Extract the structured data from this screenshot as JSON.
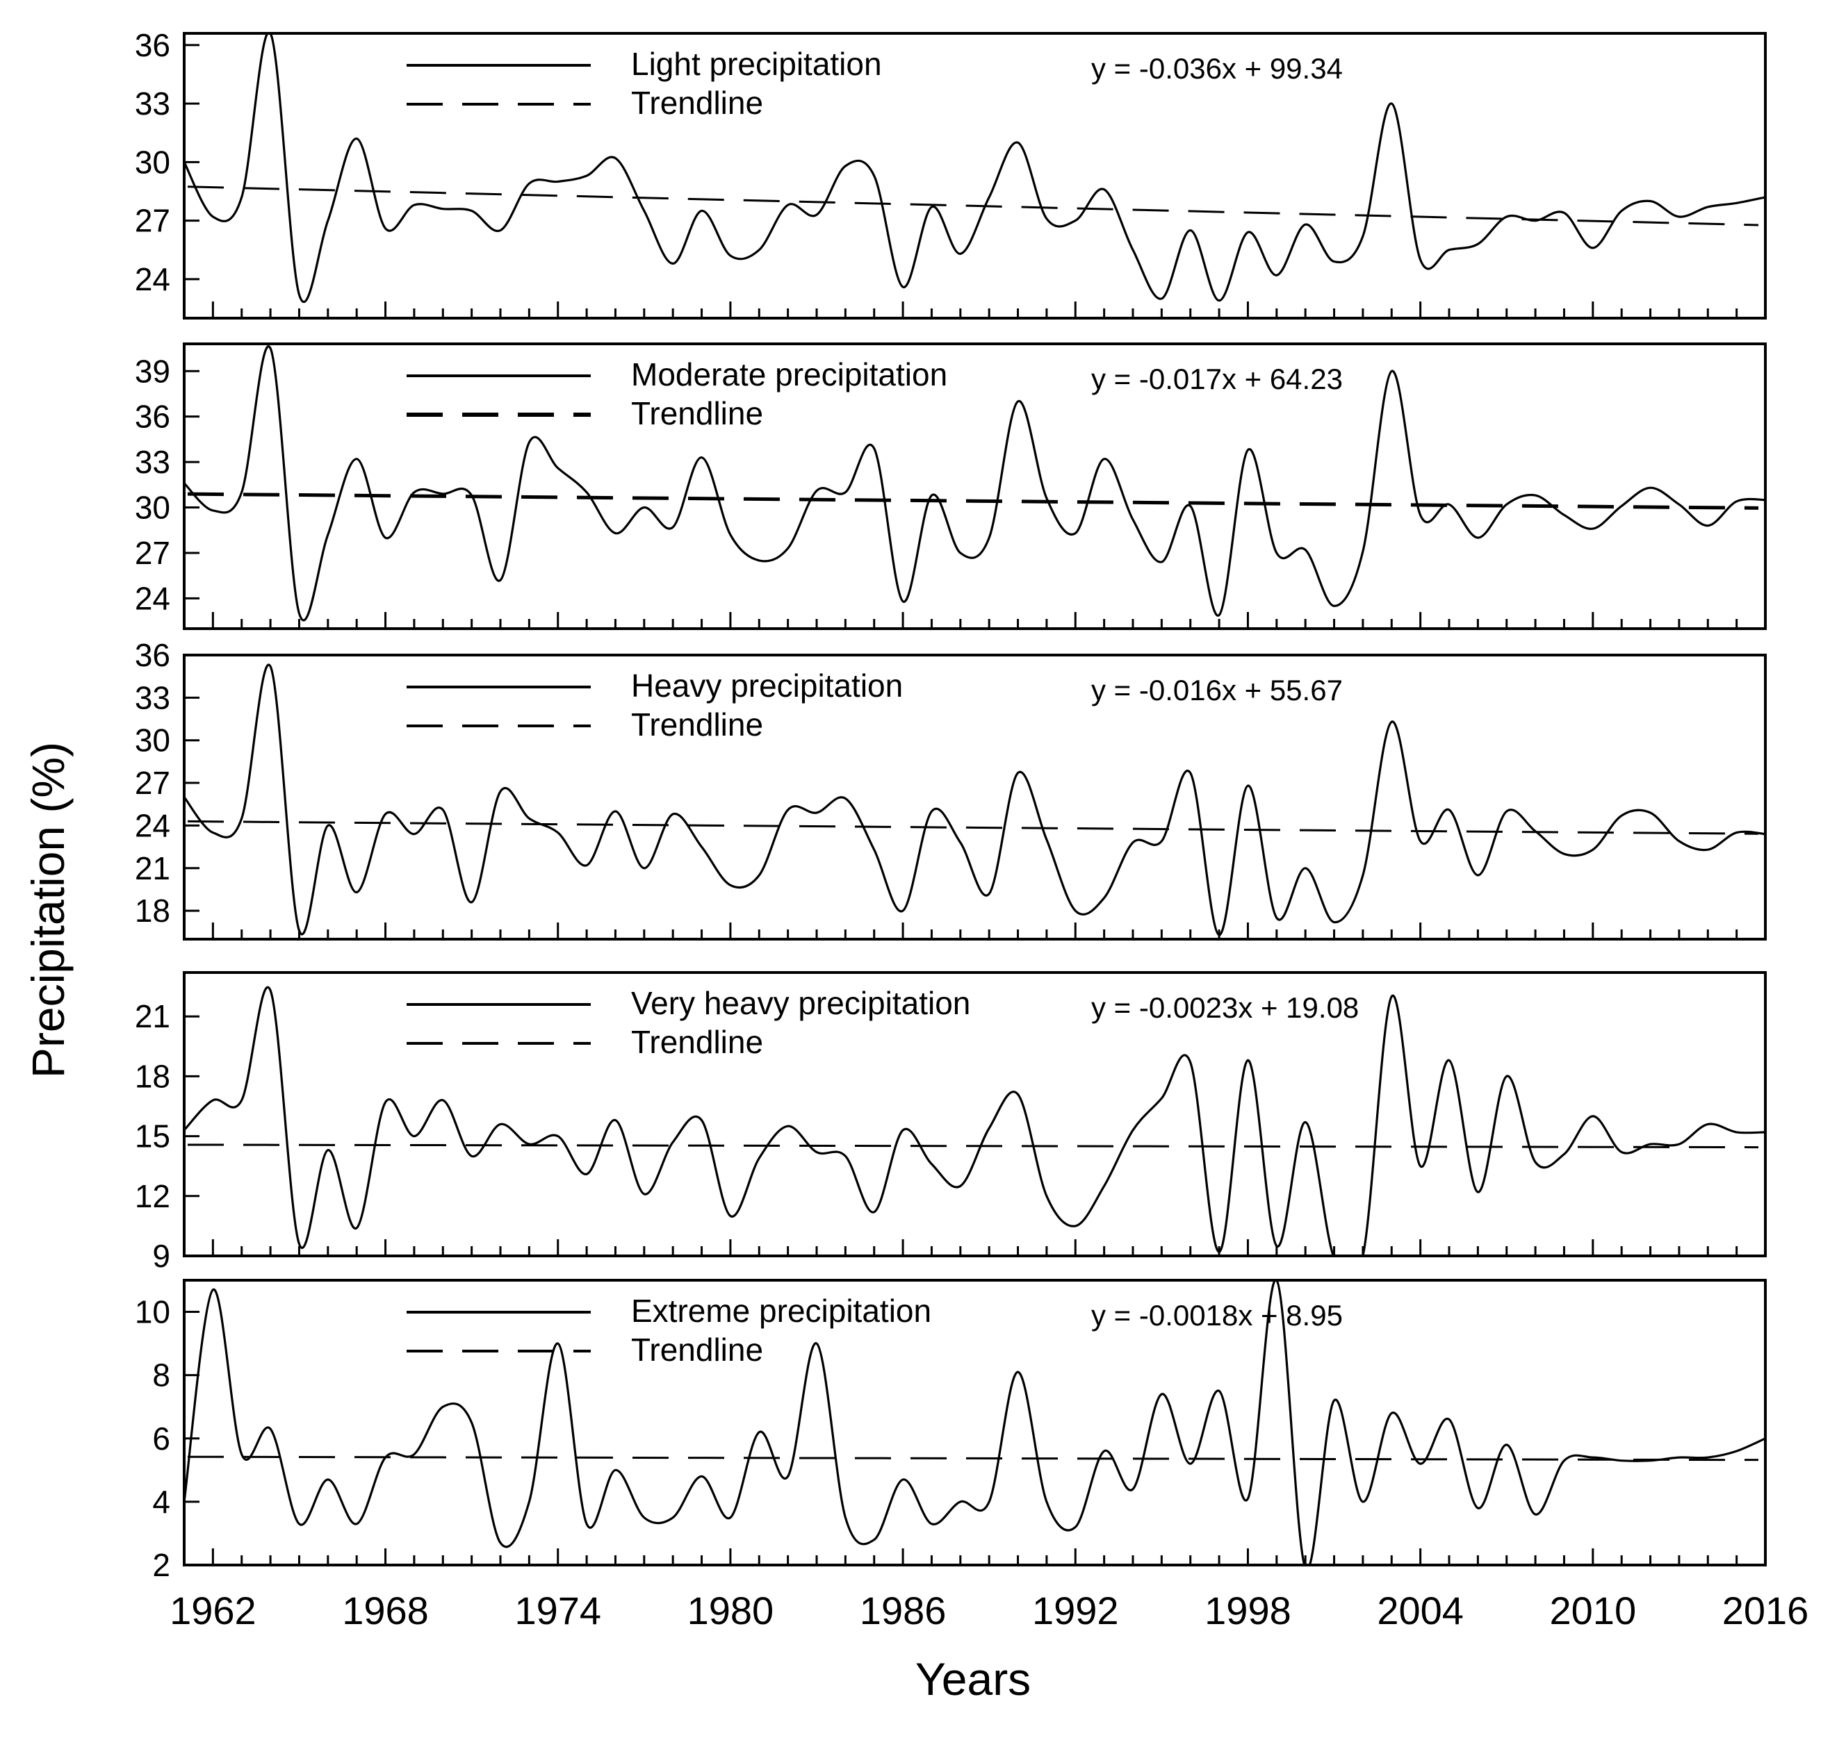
{
  "chart_data": {
    "type": "line",
    "xlabel": "Years",
    "ylabel": "Precipitation (%)",
    "x_ticks": [
      "1962",
      "1968",
      "1974",
      "1980",
      "1986",
      "1992",
      "1998",
      "2004",
      "2010",
      "2016"
    ],
    "xlim": [
      1961,
      2016
    ],
    "panels": [
      {
        "name": "light",
        "legend_series": "Light precipitation",
        "legend_trend": "Trendline",
        "equation": "y  =  -0.036x  +  99.34",
        "slope": -0.036,
        "intercept": 99.34,
        "ylim": [
          22,
          36.6
        ],
        "yticks": [
          24,
          27,
          30,
          33,
          36
        ],
        "ytick_labels": [
          "24",
          "27",
          "30",
          "33",
          "36"
        ],
        "years": [
          1961,
          1962,
          1963,
          1964,
          1965,
          1966,
          1967,
          1968,
          1969,
          1970,
          1971,
          1972,
          1973,
          1974,
          1975,
          1976,
          1977,
          1978,
          1979,
          1980,
          1981,
          1982,
          1983,
          1984,
          1985,
          1986,
          1987,
          1988,
          1989,
          1990,
          1991,
          1992,
          1993,
          1994,
          1995,
          1996,
          1997,
          1998,
          1999,
          2000,
          2001,
          2002,
          2003,
          2004,
          2005,
          2006,
          2007,
          2008,
          2009,
          2010,
          2011,
          2012,
          2013,
          2014,
          2015,
          2016
        ],
        "values": [
          30.0,
          27.2,
          28.2,
          36.6,
          23.2,
          27.0,
          31.2,
          26.6,
          27.8,
          27.6,
          27.5,
          26.5,
          28.9,
          29.0,
          29.3,
          30.2,
          27.5,
          24.8,
          27.5,
          25.2,
          25.5,
          27.8,
          27.3,
          29.8,
          29.3,
          23.6,
          27.7,
          25.3,
          28.2,
          31.0,
          27.1,
          27.0,
          28.6,
          25.5,
          23.0,
          26.5,
          22.9,
          26.4,
          24.2,
          26.8,
          24.9,
          26.2,
          33.0,
          25.0,
          25.5,
          25.8,
          27.2,
          27.0,
          27.4,
          25.6,
          27.5,
          28.0,
          27.2,
          27.7,
          27.9,
          28.2
        ]
      },
      {
        "name": "moderate",
        "legend_series": "Moderate precipitation",
        "legend_trend": "Trendline",
        "equation": "y  =  -0.017x  +  64.23",
        "slope": -0.017,
        "intercept": 64.23,
        "ylim": [
          22,
          40.8
        ],
        "yticks": [
          24,
          27,
          30,
          33,
          36,
          39
        ],
        "ytick_labels": [
          "24",
          "27",
          "30",
          "33",
          "36",
          "39"
        ],
        "years": [
          1961,
          1962,
          1963,
          1964,
          1965,
          1966,
          1967,
          1968,
          1969,
          1970,
          1971,
          1972,
          1973,
          1974,
          1975,
          1976,
          1977,
          1978,
          1979,
          1980,
          1981,
          1982,
          1983,
          1984,
          1985,
          1986,
          1987,
          1988,
          1989,
          1990,
          1991,
          1992,
          1993,
          1994,
          1995,
          1996,
          1997,
          1998,
          1999,
          2000,
          2001,
          2002,
          2003,
          2004,
          2005,
          2006,
          2007,
          2008,
          2009,
          2010,
          2011,
          2012,
          2013,
          2014,
          2015,
          2016
        ],
        "values": [
          31.6,
          29.8,
          31.0,
          40.5,
          23.0,
          28.2,
          33.2,
          28.0,
          31.0,
          30.9,
          30.8,
          25.2,
          34.3,
          32.6,
          31.0,
          28.3,
          30.0,
          28.7,
          33.3,
          28.2,
          26.5,
          27.3,
          31.1,
          31.0,
          33.9,
          23.8,
          30.8,
          27.0,
          28.0,
          37.0,
          30.6,
          28.3,
          33.2,
          29.2,
          26.4,
          30.1,
          22.9,
          33.8,
          27.0,
          27.2,
          23.5,
          27.1,
          39.0,
          29.5,
          30.2,
          28.0,
          30.2,
          30.8,
          29.5,
          28.6,
          30.1,
          31.3,
          30.2,
          28.8,
          30.4,
          30.5
        ]
      },
      {
        "name": "heavy",
        "legend_series": "Heavy precipitation",
        "legend_trend": "Trendline",
        "equation": "y  =  -0.016x  +  55.67",
        "slope": -0.016,
        "intercept": 55.67,
        "ylim": [
          16,
          36
        ],
        "yticks": [
          18,
          21,
          24,
          27,
          30,
          33,
          36
        ],
        "ytick_labels": [
          "18",
          "21",
          "24",
          "27",
          "30",
          "33",
          "36"
        ],
        "years": [
          1961,
          1962,
          1963,
          1964,
          1965,
          1966,
          1967,
          1968,
          1969,
          1970,
          1971,
          1972,
          1973,
          1974,
          1975,
          1976,
          1977,
          1978,
          1979,
          1980,
          1981,
          1982,
          1983,
          1984,
          1985,
          1986,
          1987,
          1988,
          1989,
          1990,
          1991,
          1992,
          1993,
          1994,
          1995,
          1996,
          1997,
          1998,
          1999,
          2000,
          2001,
          2002,
          2003,
          2004,
          2005,
          2006,
          2007,
          2008,
          2009,
          2010,
          2011,
          2012,
          2013,
          2014,
          2015,
          2016
        ],
        "values": [
          26.0,
          23.5,
          24.5,
          35.2,
          16.6,
          24.0,
          19.3,
          24.8,
          23.4,
          25.1,
          18.6,
          26.4,
          24.5,
          23.5,
          21.2,
          25.0,
          21.0,
          24.8,
          22.5,
          19.8,
          20.5,
          25.1,
          24.9,
          25.9,
          22.3,
          18.0,
          25.0,
          22.8,
          19.2,
          27.7,
          23.0,
          18.0,
          18.9,
          22.8,
          22.9,
          27.7,
          16.3,
          26.8,
          17.5,
          21.0,
          17.2,
          20.5,
          31.3,
          22.9,
          25.1,
          20.5,
          25.0,
          23.6,
          22.0,
          22.3,
          24.7,
          24.9,
          22.9,
          22.3,
          23.5,
          23.4
        ]
      },
      {
        "name": "very_heavy",
        "legend_series": "Very heavy precipitation",
        "legend_trend": "Trendline",
        "equation": "y  =  -0.0023x  +  19.08",
        "slope": -0.0023,
        "intercept": 19.08,
        "ylim": [
          9,
          23.2
        ],
        "yticks": [
          9,
          12,
          15,
          18,
          21
        ],
        "ytick_labels": [
          "9",
          "12",
          "15",
          "18",
          "21"
        ],
        "years": [
          1961,
          1962,
          1963,
          1964,
          1965,
          1966,
          1967,
          1968,
          1969,
          1970,
          1971,
          1972,
          1973,
          1974,
          1975,
          1976,
          1977,
          1978,
          1979,
          1980,
          1981,
          1982,
          1983,
          1984,
          1985,
          1986,
          1987,
          1988,
          1989,
          1990,
          1991,
          1992,
          1993,
          1994,
          1995,
          1996,
          1997,
          1998,
          1999,
          2000,
          2001,
          2002,
          2003,
          2004,
          2005,
          2006,
          2007,
          2008,
          2009,
          2010,
          2011,
          2012,
          2013,
          2014,
          2015,
          2016
        ],
        "values": [
          15.3,
          16.8,
          16.8,
          22.3,
          9.6,
          14.3,
          10.4,
          16.7,
          15.0,
          16.8,
          14.0,
          15.6,
          14.6,
          15.0,
          13.1,
          15.8,
          12.1,
          14.7,
          15.8,
          11.0,
          13.9,
          15.5,
          14.2,
          14.0,
          11.2,
          15.3,
          13.6,
          12.5,
          15.4,
          17.1,
          12.0,
          10.5,
          12.5,
          15.3,
          16.9,
          18.7,
          9.2,
          18.8,
          9.5,
          15.7,
          8.9,
          9.0,
          22.0,
          13.5,
          18.8,
          12.2,
          18.0,
          13.7,
          14.1,
          16.0,
          14.2,
          14.6,
          14.6,
          15.6,
          15.2,
          15.2
        ]
      },
      {
        "name": "extreme",
        "legend_series": "Extreme precipitation",
        "legend_trend": "Trendline",
        "equation": "y  =  -0.0018x  +  8.95",
        "slope": -0.0018,
        "intercept": 8.95,
        "ylim": [
          2,
          11
        ],
        "yticks": [
          2,
          4,
          6,
          8,
          10
        ],
        "ytick_labels": [
          "2",
          "4",
          "6",
          "8",
          "10"
        ],
        "years": [
          1961,
          1962,
          1963,
          1964,
          1965,
          1966,
          1967,
          1968,
          1969,
          1970,
          1971,
          1972,
          1973,
          1974,
          1975,
          1976,
          1977,
          1978,
          1979,
          1980,
          1981,
          1982,
          1983,
          1984,
          1985,
          1986,
          1987,
          1988,
          1989,
          1990,
          1991,
          1992,
          1993,
          1994,
          1995,
          1996,
          1997,
          1998,
          1999,
          2000,
          2001,
          2002,
          2003,
          2004,
          2005,
          2006,
          2007,
          2008,
          2009,
          2010,
          2011,
          2012,
          2013,
          2014,
          2015,
          2016
        ],
        "values": [
          4.0,
          10.7,
          5.5,
          6.3,
          3.3,
          4.7,
          3.3,
          5.4,
          5.5,
          7.0,
          6.5,
          2.7,
          4.0,
          9.0,
          3.3,
          5.0,
          3.5,
          3.5,
          4.8,
          3.5,
          6.2,
          4.8,
          9.0,
          3.5,
          2.8,
          4.7,
          3.3,
          4.0,
          4.0,
          8.1,
          4.0,
          3.2,
          5.6,
          4.4,
          7.4,
          5.2,
          7.5,
          4.1,
          11.0,
          1.9,
          7.2,
          4.0,
          6.8,
          5.2,
          6.6,
          3.8,
          5.8,
          3.6,
          5.3,
          5.4,
          5.3,
          5.3,
          5.4,
          5.4,
          5.6,
          6.0
        ]
      }
    ]
  }
}
